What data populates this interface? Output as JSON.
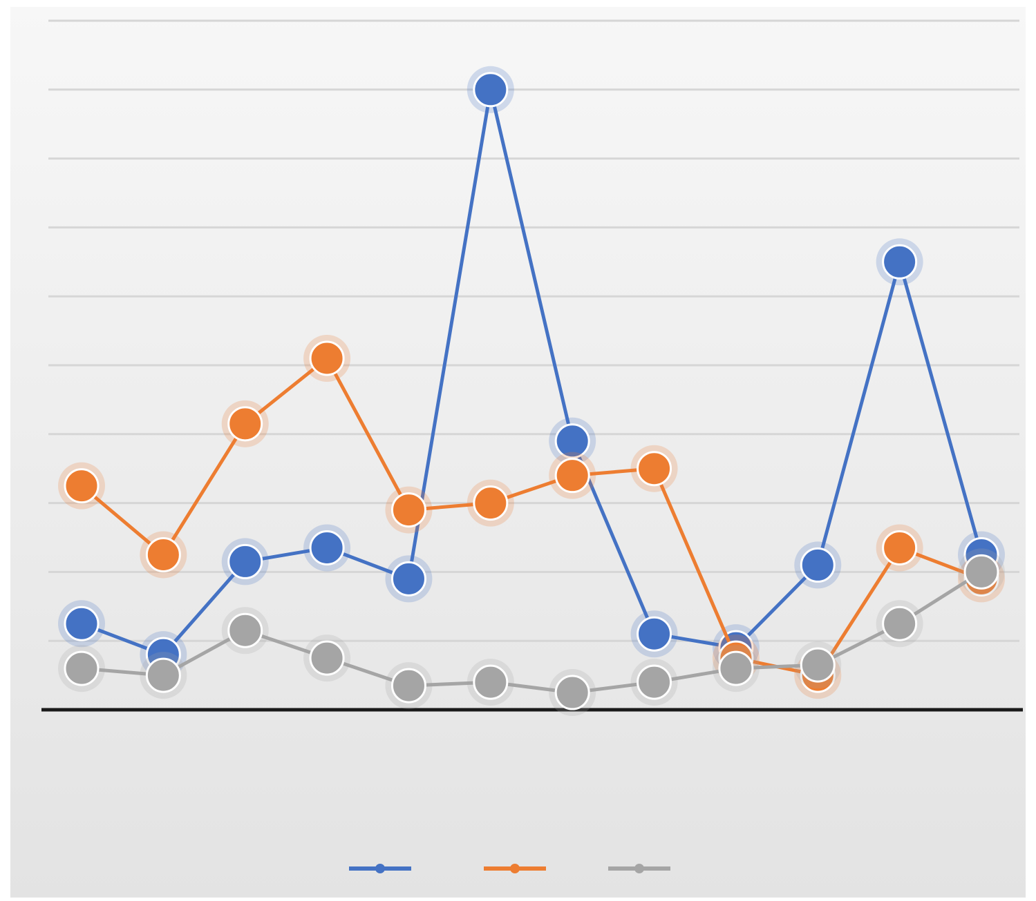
{
  "chart_data": {
    "type": "line",
    "title": "",
    "xlabel": "",
    "ylabel": "",
    "ylim": [
      0,
      200
    ],
    "grid": true,
    "legend_position": "bottom",
    "categories": [
      "",
      "",
      "",
      "",
      "",
      "",
      "",
      "",
      "",
      "",
      "",
      ""
    ],
    "series": [
      {
        "name": "",
        "color": "#4472C4",
        "values": [
          25,
          16,
          43,
          47,
          38,
          180,
          78,
          22,
          18,
          42,
          130,
          45
        ],
        "labels": [
          "",
          "",
          "",
          "",
          "",
          "",
          "",
          "",
          "",
          "",
          "",
          ""
        ]
      },
      {
        "name": "",
        "color": "#ED7D31",
        "values": [
          65,
          45,
          83,
          102,
          58,
          60,
          68,
          70,
          15,
          10,
          47,
          38
        ],
        "labels": [
          "",
          "",
          "",
          "",
          "",
          "",
          "",
          "",
          "",
          "",
          "",
          ""
        ]
      },
      {
        "name": "",
        "color": "#A5A5A5",
        "values": [
          12,
          10,
          23,
          15,
          7,
          8,
          5,
          8,
          12,
          13,
          25,
          40
        ],
        "labels": [
          "",
          "",
          "",
          "",
          "",
          "",
          "",
          "",
          "",
          "",
          "",
          ""
        ]
      }
    ]
  }
}
